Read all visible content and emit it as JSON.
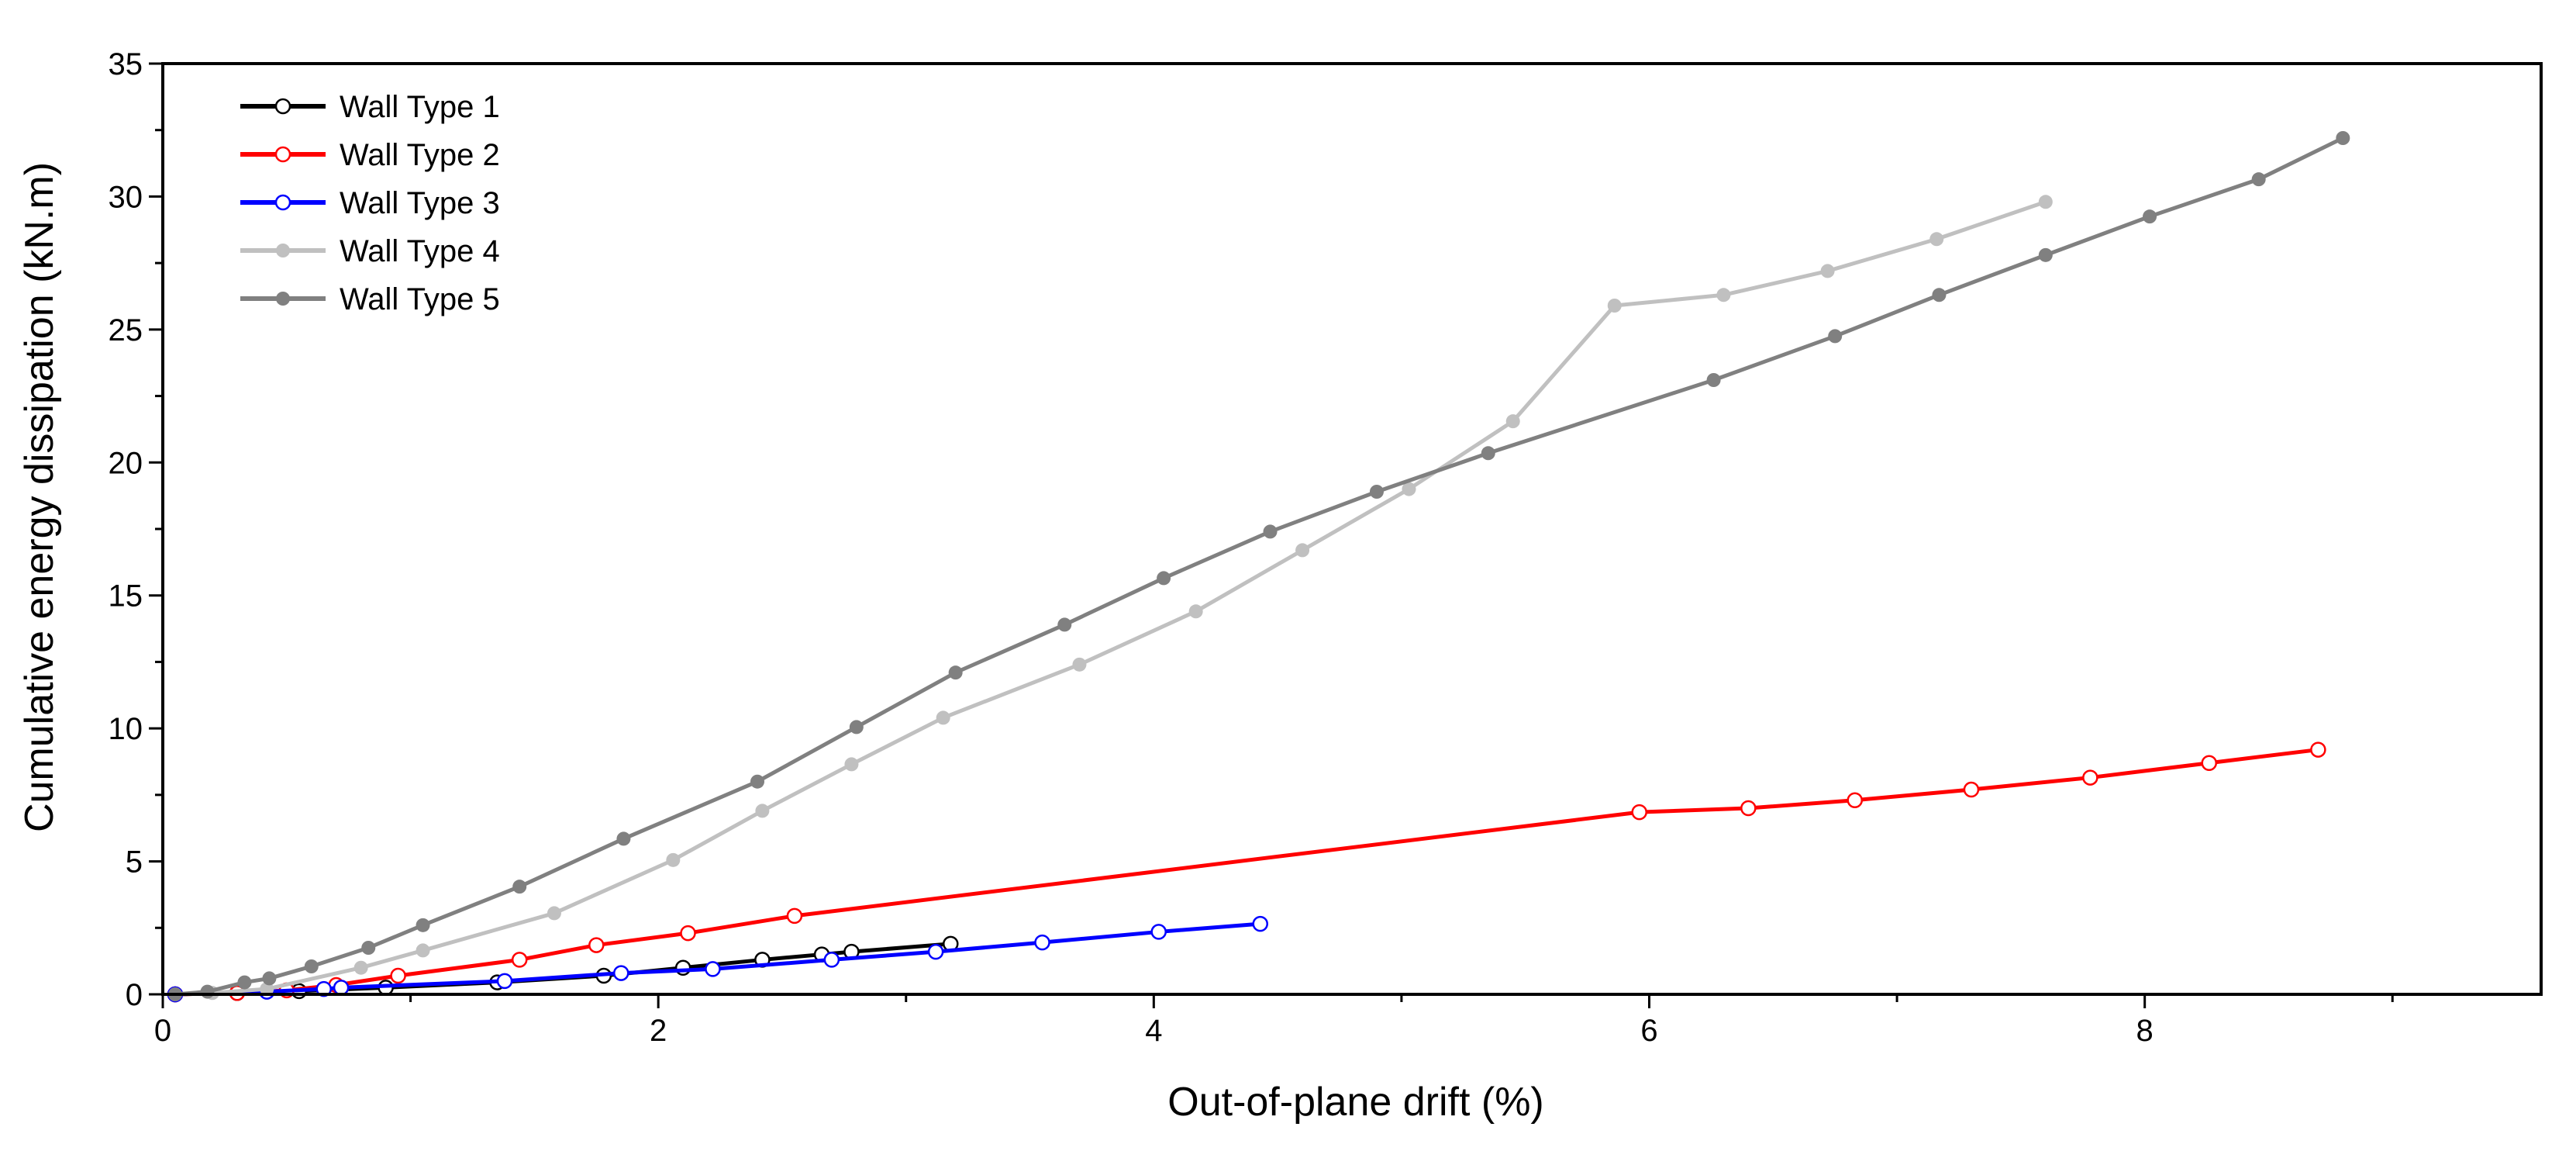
{
  "chart_data": {
    "type": "line",
    "title": "",
    "xlabel": "Out-of-plane drift (%)",
    "ylabel": "Cumulative energy dissipation (kN.m)",
    "xlim": [
      0,
      9.6
    ],
    "ylim": [
      0,
      35
    ],
    "xticks": [
      0,
      2,
      4,
      6,
      8
    ],
    "yticks": [
      0,
      5,
      10,
      15,
      20,
      25,
      30,
      35
    ],
    "grid": false,
    "legend_position": "top-left",
    "series": [
      {
        "name": "Wall Type 1",
        "color": "#000000",
        "marker": "open-circle",
        "x": [
          0.05,
          0.3,
          0.55,
          0.9,
          1.35,
          1.78,
          2.1,
          2.42,
          2.66,
          2.78,
          3.18
        ],
        "y": [
          0.0,
          0.05,
          0.12,
          0.25,
          0.45,
          0.7,
          1.0,
          1.3,
          1.5,
          1.6,
          1.9
        ]
      },
      {
        "name": "Wall Type 2",
        "color": "#ff0000",
        "marker": "open-circle",
        "x": [
          0.05,
          0.3,
          0.5,
          0.7,
          0.95,
          1.44,
          1.75,
          2.12,
          2.55,
          5.96,
          6.4,
          6.83,
          7.3,
          7.78,
          8.26,
          8.7
        ],
        "y": [
          0.0,
          0.05,
          0.15,
          0.35,
          0.7,
          1.3,
          1.85,
          2.3,
          2.95,
          6.85,
          7.0,
          7.3,
          7.7,
          8.15,
          8.7,
          9.2
        ]
      },
      {
        "name": "Wall Type 3",
        "color": "#0000ff",
        "marker": "open-circle",
        "x": [
          0.05,
          0.42,
          0.65,
          0.72,
          1.38,
          1.85,
          2.22,
          2.7,
          3.12,
          3.55,
          4.02,
          4.43
        ],
        "y": [
          0.0,
          0.1,
          0.2,
          0.25,
          0.5,
          0.8,
          0.95,
          1.3,
          1.6,
          1.95,
          2.35,
          2.65
        ]
      },
      {
        "name": "Wall Type 4",
        "color": "#c0c0c0",
        "marker": "filled-circle",
        "x": [
          0.05,
          0.2,
          0.42,
          0.8,
          1.05,
          1.58,
          2.06,
          2.42,
          2.78,
          3.15,
          3.7,
          4.17,
          4.6,
          5.03,
          5.45,
          5.86,
          6.3,
          6.72,
          7.16,
          7.6
        ],
        "y": [
          0.0,
          0.05,
          0.2,
          1.0,
          1.65,
          3.05,
          5.05,
          6.9,
          8.65,
          10.4,
          12.4,
          14.4,
          16.7,
          19.0,
          21.55,
          25.9,
          26.3,
          27.2,
          28.4,
          29.8
        ]
      },
      {
        "name": "Wall Type 5",
        "color": "#808080",
        "marker": "filled-circle",
        "x": [
          0.05,
          0.18,
          0.33,
          0.43,
          0.6,
          0.83,
          1.05,
          1.44,
          1.86,
          2.4,
          2.8,
          3.2,
          3.64,
          4.04,
          4.47,
          4.9,
          5.35,
          6.26,
          6.75,
          7.17,
          7.6,
          8.02,
          8.46,
          8.8
        ],
        "y": [
          0.0,
          0.1,
          0.45,
          0.6,
          1.05,
          1.75,
          2.6,
          4.05,
          5.85,
          8.0,
          10.05,
          12.1,
          13.9,
          15.65,
          17.4,
          18.9,
          20.35,
          23.1,
          24.75,
          26.3,
          27.8,
          29.25,
          30.65,
          32.2
        ]
      }
    ]
  }
}
